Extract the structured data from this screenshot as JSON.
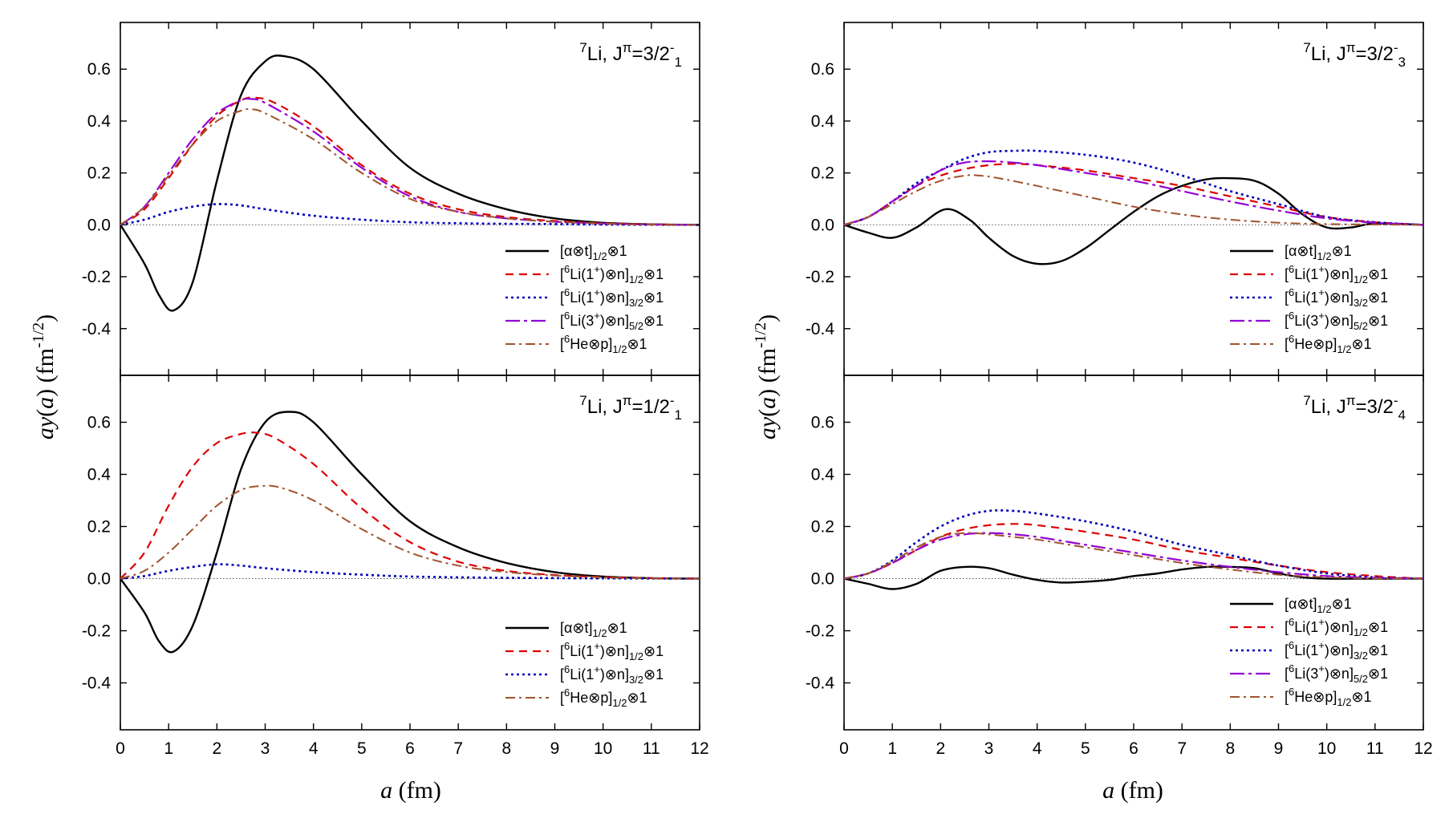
{
  "chart_data": {
    "type": "line",
    "xlabel": "a (fm)",
    "ylabel": "ay(a) (fm^-1/2)",
    "xlim": [
      0,
      12
    ],
    "ylim": [
      -0.58,
      0.78
    ],
    "xticks": [
      "0",
      "1",
      "2",
      "3",
      "4",
      "5",
      "6",
      "7",
      "8",
      "9",
      "10",
      "11",
      "12"
    ],
    "yticks": [
      {
        "v": 0.6,
        "label": "0.6"
      },
      {
        "v": 0.4,
        "label": "0.4"
      },
      {
        "v": 0.2,
        "label": "0.2"
      },
      {
        "v": 0.0,
        "label": "0.0"
      },
      {
        "v": -0.2,
        "label": "-0.2"
      },
      {
        "v": -0.4,
        "label": "-0.4"
      }
    ],
    "styles": {
      "at": {
        "color": "#000000",
        "dash": "",
        "width": 2.4
      },
      "li1n12": {
        "color": "#dd0000",
        "dash": "10 7",
        "width": 2.2
      },
      "li1n32": {
        "color": "#0000bb",
        "dash": "3 4",
        "width": 2.6
      },
      "li3n52": {
        "color": "#9400d3",
        "dash": "18 5 4 5",
        "width": 2.2
      },
      "hep": {
        "color": "#a0522d",
        "dash": "12 5 3 5",
        "width": 2.0
      }
    },
    "panels": [
      {
        "id": "top-left",
        "title": {
          "nucleus": "Li",
          "mass": "7",
          "spin": "3/2",
          "sub": "1"
        },
        "series": [
          {
            "key": "at",
            "name": "[α⊗t]1/2⊗1",
            "legend": {
              "pre": "[α⊗t]",
              "sub": "1/2",
              "post": "⊗1"
            },
            "x": [
              0,
              0.5,
              0.8,
              1.1,
              1.5,
              2,
              2.5,
              3,
              3.4,
              4,
              5,
              6,
              7,
              8,
              9,
              10,
              11,
              12
            ],
            "y": [
              0,
              -0.15,
              -0.27,
              -0.33,
              -0.22,
              0.17,
              0.5,
              0.63,
              0.65,
              0.6,
              0.4,
              0.22,
              0.12,
              0.06,
              0.025,
              0.008,
              0.002,
              0
            ]
          },
          {
            "key": "li1n12",
            "name": "[6Li(1+)⊗n]1/2⊗1",
            "legend": {
              "pre": "[",
              "presup": "6",
              "mid": "Li(1",
              "midsup": "+",
              "post1": ")⊗n]",
              "sub": "1/2",
              "post": "⊗1"
            },
            "x": [
              0,
              0.5,
              1,
              1.5,
              2,
              2.5,
              2.8,
              3.2,
              4,
              5,
              6,
              7,
              8,
              9,
              10,
              11,
              12
            ],
            "y": [
              0,
              0.06,
              0.18,
              0.31,
              0.42,
              0.48,
              0.49,
              0.47,
              0.38,
              0.23,
              0.12,
              0.06,
              0.03,
              0.015,
              0.006,
              0.002,
              0
            ]
          },
          {
            "key": "li1n32",
            "name": "[6Li(1+)⊗n]3/2⊗1",
            "legend": {
              "pre": "[",
              "presup": "6",
              "mid": "Li(1",
              "midsup": "+",
              "post1": ")⊗n]",
              "sub": "3/2",
              "post": "⊗1"
            },
            "x": [
              0,
              0.5,
              1,
              1.5,
              2,
              2.5,
              3,
              4,
              5,
              6,
              7,
              8,
              9,
              10,
              12
            ],
            "y": [
              0,
              0.02,
              0.05,
              0.07,
              0.08,
              0.075,
              0.06,
              0.035,
              0.02,
              0.01,
              0.006,
              0.004,
              0.003,
              0.001,
              0
            ]
          },
          {
            "key": "li3n52",
            "name": "[6Li(3+)⊗n]5/2⊗1",
            "legend": {
              "pre": "[",
              "presup": "6",
              "mid": "Li(3",
              "midsup": "+",
              "post1": ")⊗n]",
              "sub": "5/2",
              "post": "⊗1"
            },
            "x": [
              0,
              0.5,
              1,
              1.5,
              2,
              2.5,
              2.7,
              3,
              4,
              5,
              6,
              7,
              8,
              9,
              10,
              11,
              12
            ],
            "y": [
              0,
              0.07,
              0.2,
              0.33,
              0.43,
              0.48,
              0.485,
              0.47,
              0.36,
              0.22,
              0.11,
              0.05,
              0.025,
              0.012,
              0.005,
              0.001,
              0
            ]
          },
          {
            "key": "hep",
            "name": "[6He⊗p]1/2⊗1",
            "legend": {
              "pre": "[",
              "presup": "6",
              "mid": "He⊗p]",
              "sub": "1/2",
              "post": "⊗1"
            },
            "x": [
              0,
              0.5,
              1,
              1.5,
              2,
              2.5,
              2.7,
              3,
              4,
              5,
              6,
              7,
              8,
              9,
              10,
              11,
              12
            ],
            "y": [
              0,
              0.07,
              0.19,
              0.31,
              0.4,
              0.44,
              0.445,
              0.43,
              0.33,
              0.2,
              0.1,
              0.05,
              0.025,
              0.012,
              0.005,
              0.001,
              0
            ]
          }
        ]
      },
      {
        "id": "top-right",
        "title": {
          "nucleus": "Li",
          "mass": "7",
          "spin": "3/2",
          "sub": "3"
        },
        "series": [
          {
            "key": "at",
            "name": "[α⊗t]1/2⊗1",
            "x": [
              0,
              0.5,
              1,
              1.5,
              2.1,
              2.6,
              3,
              3.5,
              4,
              4.5,
              5,
              5.5,
              6,
              6.5,
              7,
              7.5,
              7.9,
              8.5,
              9,
              9.5,
              10,
              10.5,
              11,
              12
            ],
            "y": [
              0,
              -0.03,
              -0.05,
              -0.01,
              0.06,
              0.02,
              -0.05,
              -0.12,
              -0.15,
              -0.14,
              -0.09,
              -0.02,
              0.05,
              0.11,
              0.15,
              0.175,
              0.18,
              0.17,
              0.12,
              0.04,
              -0.01,
              -0.01,
              0.005,
              0
            ]
          },
          {
            "key": "li1n12",
            "name": "[6Li(1+)⊗n]1/2⊗1",
            "x": [
              0,
              0.5,
              1,
              1.5,
              2,
              2.5,
              3,
              3.5,
              4,
              5,
              6,
              7,
              8,
              9,
              10,
              11,
              12
            ],
            "y": [
              0,
              0.03,
              0.09,
              0.15,
              0.19,
              0.215,
              0.23,
              0.235,
              0.23,
              0.21,
              0.18,
              0.15,
              0.11,
              0.07,
              0.03,
              0.01,
              0
            ]
          },
          {
            "key": "li1n32",
            "name": "[6Li(1+)⊗n]3/2⊗1",
            "x": [
              0,
              0.5,
              1,
              1.5,
              2,
              2.5,
              3,
              3.5,
              4,
              5,
              6,
              7,
              8,
              9,
              10,
              11,
              12
            ],
            "y": [
              0,
              0.03,
              0.09,
              0.16,
              0.21,
              0.255,
              0.28,
              0.285,
              0.285,
              0.27,
              0.24,
              0.19,
              0.13,
              0.08,
              0.03,
              0.01,
              0
            ]
          },
          {
            "key": "li3n52",
            "name": "[6Li(3+)⊗n]5/2⊗1",
            "x": [
              0,
              0.5,
              1,
              1.5,
              2,
              2.5,
              3,
              3.5,
              4,
              5,
              6,
              7,
              8,
              9,
              10,
              11,
              12
            ],
            "y": [
              0,
              0.03,
              0.09,
              0.15,
              0.21,
              0.24,
              0.245,
              0.24,
              0.23,
              0.2,
              0.17,
              0.13,
              0.09,
              0.055,
              0.025,
              0.008,
              0
            ]
          },
          {
            "key": "hep",
            "name": "[6He⊗p]1/2⊗1",
            "x": [
              0,
              0.5,
              1,
              1.5,
              2,
              2.5,
              2.8,
              3.2,
              4,
              5,
              6,
              7,
              8,
              9,
              10,
              11,
              12
            ],
            "y": [
              0,
              0.03,
              0.08,
              0.13,
              0.17,
              0.19,
              0.19,
              0.18,
              0.15,
              0.11,
              0.07,
              0.04,
              0.02,
              0.008,
              0.003,
              0.001,
              0
            ]
          }
        ]
      },
      {
        "id": "bottom-left",
        "title": {
          "nucleus": "Li",
          "mass": "7",
          "spin": "1/2",
          "sub": "1"
        },
        "series": [
          {
            "key": "at",
            "name": "[α⊗t]1/2⊗1",
            "x": [
              0,
              0.5,
              0.8,
              1.1,
              1.5,
              2,
              2.5,
              3,
              3.5,
              4,
              5,
              6,
              7,
              8,
              9,
              10,
              11,
              12
            ],
            "y": [
              0,
              -0.13,
              -0.24,
              -0.28,
              -0.18,
              0.1,
              0.42,
              0.6,
              0.64,
              0.6,
              0.4,
              0.22,
              0.12,
              0.06,
              0.025,
              0.008,
              0.002,
              0
            ]
          },
          {
            "key": "li1n12",
            "name": "[6Li(1+)⊗n]1/2⊗1",
            "x": [
              0,
              0.5,
              1,
              1.5,
              2,
              2.5,
              2.8,
              3.2,
              4,
              5,
              6,
              7,
              8,
              9,
              10,
              11,
              12
            ],
            "y": [
              0,
              0.1,
              0.28,
              0.43,
              0.52,
              0.555,
              0.56,
              0.54,
              0.44,
              0.27,
              0.14,
              0.065,
              0.03,
              0.014,
              0.006,
              0.002,
              0
            ]
          },
          {
            "key": "li1n32",
            "name": "[6Li(1+)⊗n]3/2⊗1",
            "x": [
              0,
              0.5,
              1,
              1.5,
              2,
              2.5,
              3,
              4,
              5,
              6,
              7,
              8,
              9,
              10,
              12
            ],
            "y": [
              0,
              0.01,
              0.03,
              0.045,
              0.055,
              0.05,
              0.04,
              0.025,
              0.015,
              0.008,
              0.005,
              0.003,
              0.002,
              0.001,
              0
            ]
          },
          {
            "key": "hep",
            "name": "[6He⊗p]1/2⊗1",
            "x": [
              0,
              0.5,
              1,
              1.5,
              2,
              2.5,
              2.9,
              3.3,
              4,
              5,
              6,
              7,
              8,
              9,
              10,
              11,
              12
            ],
            "y": [
              0,
              0.03,
              0.1,
              0.19,
              0.28,
              0.34,
              0.355,
              0.35,
              0.3,
              0.19,
              0.1,
              0.05,
              0.025,
              0.012,
              0.005,
              0.001,
              0
            ]
          }
        ]
      },
      {
        "id": "bottom-right",
        "title": {
          "nucleus": "Li",
          "mass": "7",
          "spin": "3/2",
          "sub": "4"
        },
        "series": [
          {
            "key": "at",
            "name": "[α⊗t]1/2⊗1",
            "x": [
              0,
              0.5,
              1,
              1.5,
              2,
              2.5,
              3,
              3.5,
              4,
              4.5,
              5,
              5.5,
              6,
              6.5,
              7,
              7.5,
              8,
              8.5,
              9,
              9.5,
              10,
              11,
              12
            ],
            "y": [
              0,
              -0.02,
              -0.04,
              -0.02,
              0.03,
              0.045,
              0.04,
              0.015,
              -0.005,
              -0.015,
              -0.012,
              -0.005,
              0.01,
              0.02,
              0.035,
              0.045,
              0.045,
              0.04,
              0.02,
              0.005,
              0,
              0,
              0
            ]
          },
          {
            "key": "li1n12",
            "name": "[6Li(1+)⊗n]1/2⊗1",
            "x": [
              0,
              0.5,
              1,
              1.5,
              2,
              2.5,
              3,
              3.5,
              4,
              5,
              6,
              7,
              8,
              9,
              10,
              11,
              12
            ],
            "y": [
              0,
              0.02,
              0.06,
              0.11,
              0.16,
              0.19,
              0.205,
              0.21,
              0.205,
              0.18,
              0.15,
              0.11,
              0.08,
              0.05,
              0.025,
              0.01,
              0
            ]
          },
          {
            "key": "li1n32",
            "name": "[6Li(1+)⊗n]3/2⊗1",
            "x": [
              0,
              0.5,
              1,
              1.5,
              2,
              2.5,
              3,
              3.5,
              4,
              5,
              6,
              7,
              8,
              9,
              10,
              11,
              12
            ],
            "y": [
              0,
              0.02,
              0.07,
              0.14,
              0.2,
              0.24,
              0.26,
              0.26,
              0.25,
              0.22,
              0.18,
              0.13,
              0.09,
              0.05,
              0.02,
              0.005,
              0
            ]
          },
          {
            "key": "li3n52",
            "name": "[6Li(3+)⊗n]5/2⊗1",
            "x": [
              0,
              0.5,
              1,
              1.5,
              2,
              2.5,
              3,
              3.5,
              4,
              5,
              6,
              7,
              8,
              9,
              10,
              11,
              12
            ],
            "y": [
              0,
              0.02,
              0.06,
              0.11,
              0.15,
              0.17,
              0.175,
              0.17,
              0.16,
              0.13,
              0.1,
              0.07,
              0.045,
              0.025,
              0.01,
              0.003,
              0
            ]
          },
          {
            "key": "hep",
            "name": "[6He⊗p]1/2⊗1",
            "x": [
              0,
              0.5,
              1,
              1.5,
              2,
              2.5,
              3,
              3.5,
              4,
              5,
              6,
              7,
              8,
              9,
              10,
              11,
              12
            ],
            "y": [
              0,
              0.02,
              0.065,
              0.12,
              0.16,
              0.175,
              0.17,
              0.16,
              0.15,
              0.12,
              0.09,
              0.06,
              0.035,
              0.015,
              0.005,
              0.001,
              0
            ]
          }
        ]
      }
    ]
  }
}
